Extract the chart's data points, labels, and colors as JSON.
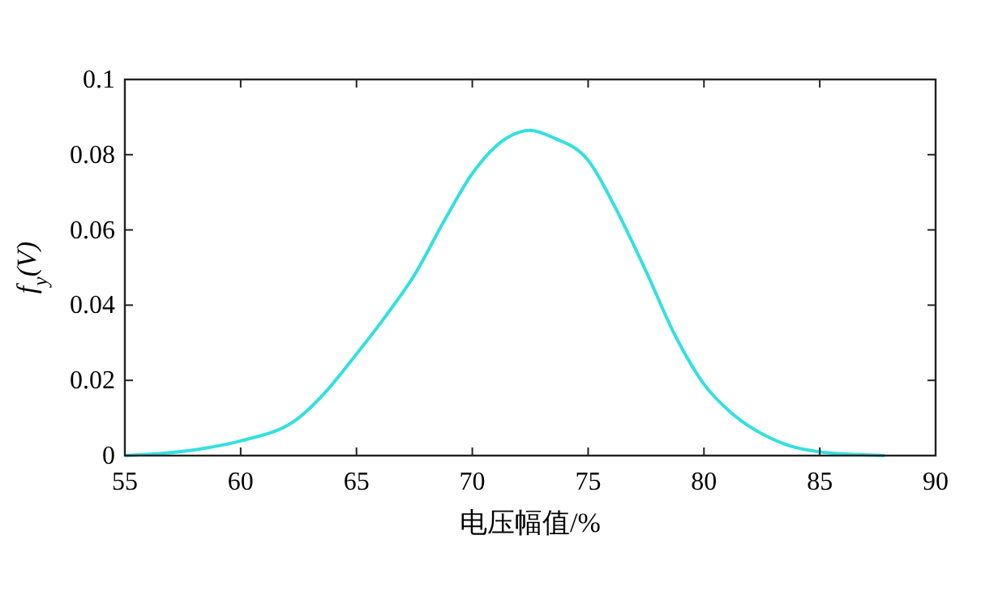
{
  "chart_data": {
    "type": "line",
    "xlabel": "电压幅值/%",
    "ylabel": "f$_{y}$(V)",
    "x": [
      55,
      57,
      58.5,
      60,
      62.5,
      63.75,
      65,
      66.25,
      67.5,
      68.75,
      70,
      71.5,
      72.5,
      73.5,
      75,
      76.25,
      77.5,
      78.75,
      80,
      81.25,
      82.5,
      83.75,
      85,
      86.5,
      87.8
    ],
    "series": [
      {
        "color": "#33e0e0",
        "values": [
          0,
          0.0008,
          0.002,
          0.0039,
          0.01,
          0.0175,
          0.027,
          0.037,
          0.048,
          0.062,
          0.075,
          0.0845,
          0.0865,
          0.0845,
          0.0785,
          0.065,
          0.049,
          0.032,
          0.019,
          0.011,
          0.0058,
          0.0025,
          0.001,
          0.0003,
          0
        ]
      }
    ],
    "xlim": [
      55,
      90
    ],
    "xticks": [
      55,
      60,
      65,
      70,
      75,
      80,
      85,
      90
    ],
    "ylim": [
      0,
      0.1
    ],
    "yticks": [
      0,
      0.02,
      0.04,
      0.06,
      0.08,
      0.1
    ],
    "grid": false,
    "line_style": "solid"
  }
}
